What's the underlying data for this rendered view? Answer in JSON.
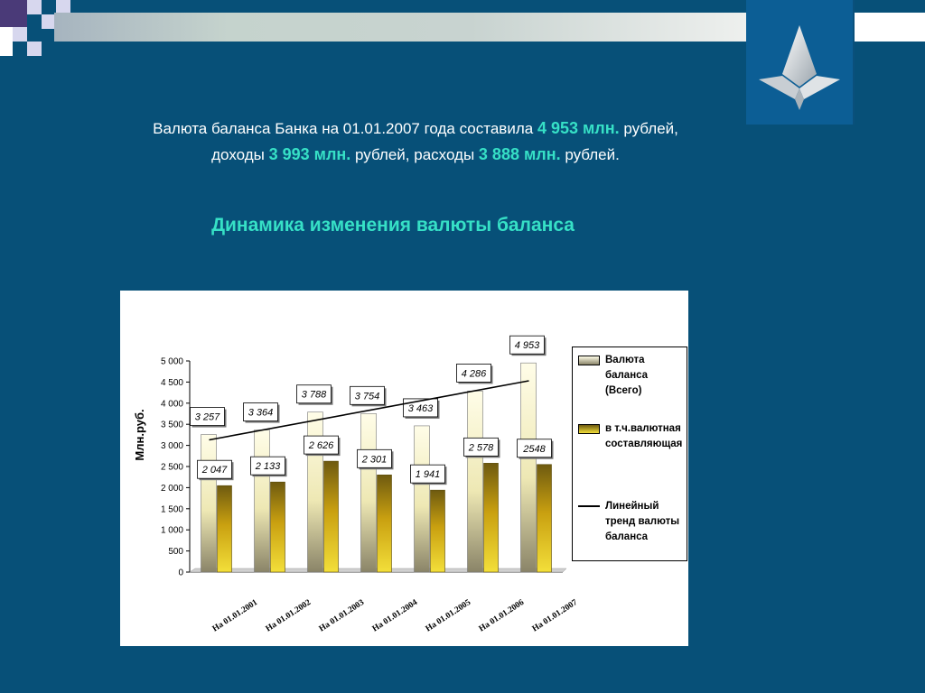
{
  "intro": {
    "line1_a": "Валюта баланса Банка на 01.01.2007 года составила",
    "line1_hl": "4 953 млн.",
    "line1_b": "рублей,",
    "line2_a": "доходы",
    "line2_hl1": "3 993 млн.",
    "line2_b": "рублей, расходы",
    "line2_hl2": "3 888 млн.",
    "line2_c": "рублей."
  },
  "subtitle": "Динамика изменения валюты баланса",
  "colors": {
    "background": "#075078",
    "accent": "#36e0c6",
    "series_total": "#f0ecbc",
    "series_fx": "#c9a010"
  },
  "chart_data": {
    "type": "bar",
    "ylabel": "Млн.руб.",
    "ylim": [
      0,
      5000
    ],
    "yticks": [
      0,
      500,
      1000,
      1500,
      2000,
      2500,
      3000,
      3500,
      4000,
      4500,
      5000
    ],
    "ytick_labels": [
      "0",
      "500",
      "1 000",
      "1 500",
      "2 000",
      "2 500",
      "3 000",
      "3 500",
      "4 000",
      "4 500",
      "5 000"
    ],
    "categories": [
      "На 01.01.2001",
      "На 01.01.2002",
      "На 01.01.2003",
      "На 01.01.2004",
      "На 01.01.2005",
      "На 01.01.2006",
      "На 01.01.2007"
    ],
    "series": [
      {
        "name": "Валюта баланса (Всего)",
        "values": [
          3257,
          3364,
          3788,
          3754,
          3463,
          4286,
          4953
        ],
        "labels": [
          "3 257",
          "3 364",
          "3 788",
          "3 754",
          "3 463",
          "4 286",
          "4 953"
        ]
      },
      {
        "name": "в т.ч.валютная составляющая",
        "values": [
          2047,
          2133,
          2626,
          2301,
          1941,
          2578,
          2548
        ],
        "labels": [
          "2 047",
          "2 133",
          "2 626",
          "2 301",
          "1 941",
          "2 578",
          "2548"
        ]
      }
    ],
    "trend": {
      "name": "Линейный тренд валюты баланса",
      "start": 3130,
      "end": 4530
    },
    "grid": false,
    "legend": "right"
  }
}
